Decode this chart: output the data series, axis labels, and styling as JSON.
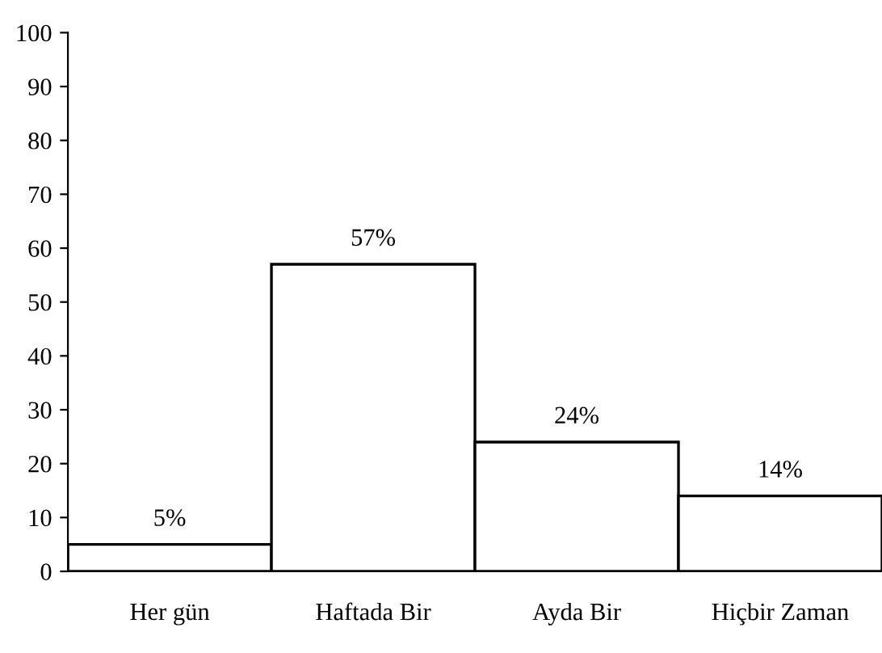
{
  "chart_data": {
    "type": "bar",
    "categories": [
      "Her gün",
      "Haftada Bir",
      "Ayda Bir",
      "Hiçbir Zaman"
    ],
    "values": [
      5,
      57,
      24,
      14
    ],
    "value_labels": [
      "5%",
      "57%",
      "24%",
      "14%"
    ],
    "color": "#ffffff",
    "ylim": [
      0,
      100
    ],
    "yticks": [
      0,
      10,
      20,
      30,
      40,
      50,
      60,
      70,
      80,
      90,
      100
    ],
    "grid": false,
    "legend": false
  }
}
